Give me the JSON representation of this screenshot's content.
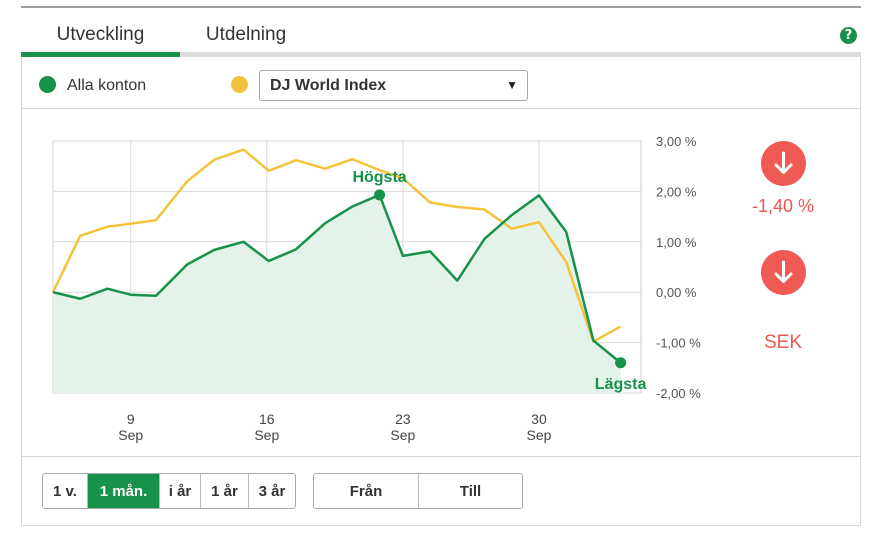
{
  "tabs": [
    {
      "label": "Utveckling",
      "active": true
    },
    {
      "label": "Utdelning",
      "active": false
    }
  ],
  "help_icon": "question-icon",
  "legend": {
    "series_label": "Alla konton",
    "series_color": "#17924a",
    "compare_color": "#f5c33b",
    "compare_selected": "DJ World Index"
  },
  "stats": {
    "change": "-1,40 %",
    "currency": "SEK",
    "change_icon": "arrow-down-icon",
    "negative_color": "#ef5350"
  },
  "period_buttons": [
    {
      "label": "1 v.",
      "active": false
    },
    {
      "label": "1 mån.",
      "active": true
    },
    {
      "label": "i år",
      "active": false
    },
    {
      "label": "1 år",
      "active": false
    },
    {
      "label": "3 år",
      "active": false
    }
  ],
  "range_buttons": {
    "from": "Från",
    "to": "Till"
  },
  "chart_data": {
    "type": "line",
    "x": [
      5,
      6,
      7,
      8,
      9,
      10,
      11,
      12,
      13,
      14,
      15,
      16,
      17,
      18,
      19,
      20,
      21,
      22,
      23,
      24,
      25,
      26,
      27,
      28,
      29,
      30,
      31,
      32,
      33,
      34,
      35
    ],
    "x_ticks": [
      {
        "x": 9,
        "label": "9",
        "sublabel": "Sep"
      },
      {
        "x": 16,
        "label": "16",
        "sublabel": "Sep"
      },
      {
        "x": 23,
        "label": "23",
        "sublabel": "Sep"
      },
      {
        "x": 30,
        "label": "30",
        "sublabel": "Sep"
      }
    ],
    "ylim": [
      -2.0,
      3.0
    ],
    "y_ticks": [
      {
        "value": 3.0,
        "label": "3,00 %"
      },
      {
        "value": 2.0,
        "label": "2,00 %"
      },
      {
        "value": 1.0,
        "label": "1,00 %"
      },
      {
        "value": 0.0,
        "label": "0,00 %"
      },
      {
        "value": -1.0,
        "label": "-1,00 %"
      },
      {
        "value": -2.0,
        "label": "-2,00 %"
      }
    ],
    "grid": true,
    "series": [
      {
        "name": "Alla konton",
        "color": "#17924a",
        "area": true,
        "points": [
          [
            5,
            0.0
          ],
          [
            6.4,
            -0.13
          ],
          [
            7.8,
            0.07
          ],
          [
            9,
            -0.05
          ],
          [
            10.3,
            -0.07
          ],
          [
            11.9,
            0.55
          ],
          [
            13.3,
            0.84
          ],
          [
            14.8,
            1.0
          ],
          [
            16.1,
            0.62
          ],
          [
            17.5,
            0.85
          ],
          [
            19,
            1.37
          ],
          [
            20.4,
            1.7
          ],
          [
            21.8,
            1.93
          ],
          [
            23,
            0.72
          ],
          [
            24.4,
            0.81
          ],
          [
            25.8,
            0.23
          ],
          [
            27.2,
            1.06
          ],
          [
            28.6,
            1.53
          ],
          [
            30,
            1.92
          ],
          [
            31.4,
            1.2
          ],
          [
            32.8,
            -0.96
          ],
          [
            34.2,
            -1.4
          ]
        ]
      },
      {
        "name": "DJ World Index",
        "color": "#f5c33b",
        "area": false,
        "points": [
          [
            5,
            0.0
          ],
          [
            6.4,
            1.12
          ],
          [
            7.8,
            1.3
          ],
          [
            9,
            1.36
          ],
          [
            10.3,
            1.43
          ],
          [
            11.9,
            2.2
          ],
          [
            13.3,
            2.63
          ],
          [
            14.8,
            2.83
          ],
          [
            16.1,
            2.41
          ],
          [
            17.5,
            2.62
          ],
          [
            19,
            2.45
          ],
          [
            20.4,
            2.64
          ],
          [
            21.8,
            2.42
          ],
          [
            23,
            2.26
          ],
          [
            24.4,
            1.78
          ],
          [
            25.8,
            1.69
          ],
          [
            27.2,
            1.64
          ],
          [
            28.6,
            1.26
          ],
          [
            30,
            1.39
          ],
          [
            31.4,
            0.6
          ],
          [
            32.8,
            -0.98
          ],
          [
            34.2,
            -0.68
          ]
        ]
      }
    ],
    "markers": [
      {
        "label": "Högsta",
        "x": 21.8,
        "y": 1.93,
        "position": "above"
      },
      {
        "label": "Lägsta",
        "x": 34.2,
        "y": -1.4,
        "position": "below"
      }
    ]
  }
}
